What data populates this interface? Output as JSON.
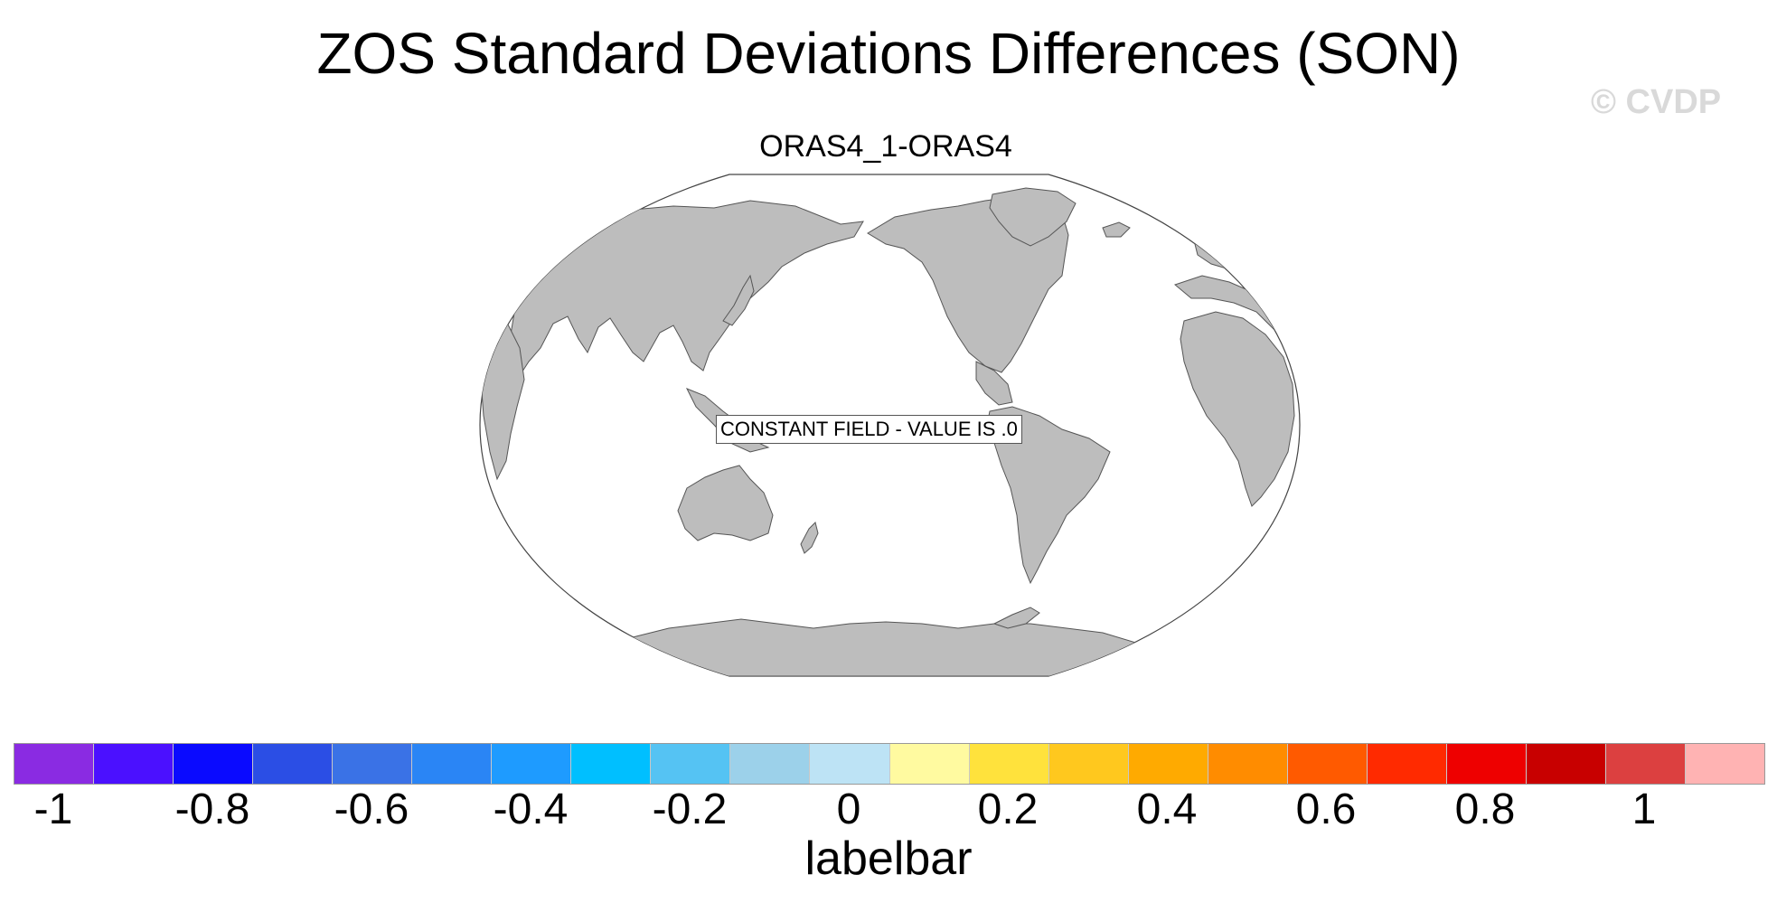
{
  "figure": {
    "title": "ZOS Standard Deviations Differences (SON)",
    "watermark": "© CVDP",
    "panel_title": "ORAS4_1-ORAS4",
    "center_label": "CONSTANT FIELD - VALUE IS .0",
    "land_color": "#bdbdbd",
    "ocean_color": "#ffffff"
  },
  "labelbar": {
    "caption": "labelbar",
    "colors": [
      "#8a2be2",
      "#4b10ff",
      "#0a0aff",
      "#2b4ee5",
      "#3a72e6",
      "#2a85f5",
      "#1e9bff",
      "#00bfff",
      "#55c3f3",
      "#9cd1ea",
      "#bde3f5",
      "#fffaa0",
      "#ffe23c",
      "#ffc81e",
      "#ffaa00",
      "#ff8c00",
      "#ff5a00",
      "#ff2a00",
      "#ee0000",
      "#c80000",
      "#dc4040",
      "#ffb3b3"
    ],
    "tick_labels": [
      "-1",
      "-0.8",
      "-0.6",
      "-0.4",
      "-0.2",
      "0",
      "0.2",
      "0.4",
      "0.6",
      "0.8",
      "1"
    ]
  }
}
